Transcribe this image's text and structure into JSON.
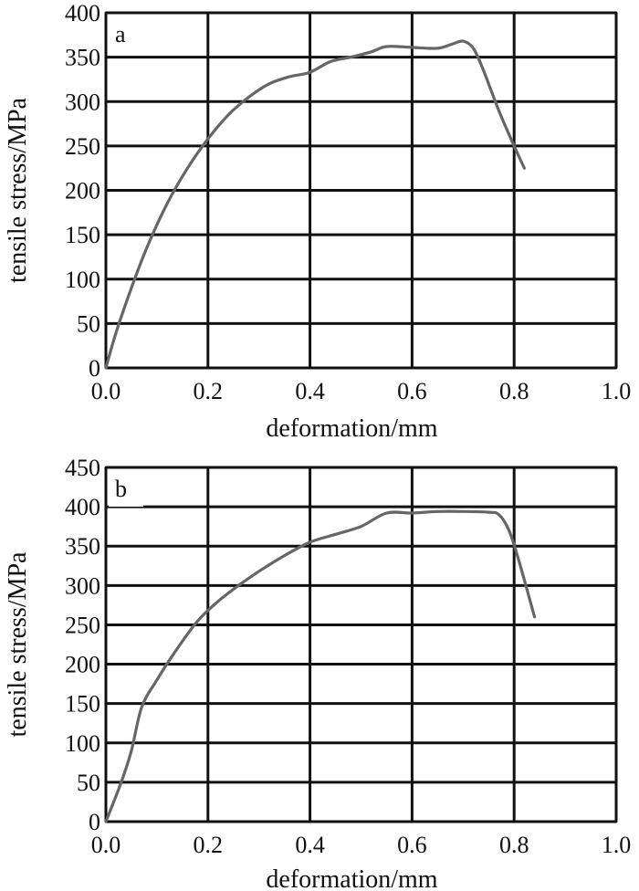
{
  "colors": {
    "line": "#666666",
    "grid": "#111111",
    "background": "#ffffff"
  },
  "chart_data": [
    {
      "type": "line",
      "panel_label": "a",
      "xlabel": "deformation/mm",
      "ylabel": "tensile stress/MPa",
      "xlim": [
        0.0,
        1.0
      ],
      "ylim": [
        0,
        400
      ],
      "xticks": [
        "0.0",
        "0.2",
        "0.4",
        "0.6",
        "0.8",
        "1.0"
      ],
      "yticks": [
        "0",
        "50",
        "100",
        "150",
        "200",
        "250",
        "300",
        "350",
        "400"
      ],
      "grid": true,
      "series": [
        {
          "x": [
            0.0,
            0.02,
            0.05,
            0.08,
            0.12,
            0.16,
            0.2,
            0.24,
            0.28,
            0.32,
            0.36,
            0.4,
            0.44,
            0.48,
            0.52,
            0.55,
            0.6,
            0.65,
            0.68,
            0.7,
            0.72,
            0.74,
            0.77,
            0.8,
            0.82
          ],
          "y": [
            0,
            40,
            90,
            135,
            185,
            225,
            258,
            285,
            305,
            320,
            328,
            333,
            345,
            350,
            356,
            362,
            361,
            360,
            365,
            368,
            360,
            335,
            290,
            250,
            225
          ]
        }
      ]
    },
    {
      "type": "line",
      "panel_label": "b",
      "xlabel": "deformation/mm",
      "ylabel": "tensile stress/MPa",
      "xlim": [
        0.0,
        1.0
      ],
      "ylim": [
        0,
        450
      ],
      "xticks": [
        "0.0",
        "0.2",
        "0.4",
        "0.6",
        "0.8",
        "1.0"
      ],
      "yticks": [
        "0",
        "50",
        "100",
        "150",
        "200",
        "250",
        "300",
        "350",
        "400",
        "450"
      ],
      "grid": true,
      "series": [
        {
          "x": [
            0.0,
            0.03,
            0.05,
            0.07,
            0.1,
            0.14,
            0.18,
            0.22,
            0.26,
            0.3,
            0.35,
            0.4,
            0.45,
            0.5,
            0.55,
            0.6,
            0.65,
            0.7,
            0.75,
            0.77,
            0.79,
            0.81,
            0.84
          ],
          "y": [
            0,
            50,
            90,
            145,
            180,
            220,
            255,
            280,
            300,
            318,
            338,
            355,
            365,
            375,
            392,
            392,
            394,
            394,
            393,
            390,
            370,
            330,
            260
          ]
        }
      ]
    }
  ]
}
